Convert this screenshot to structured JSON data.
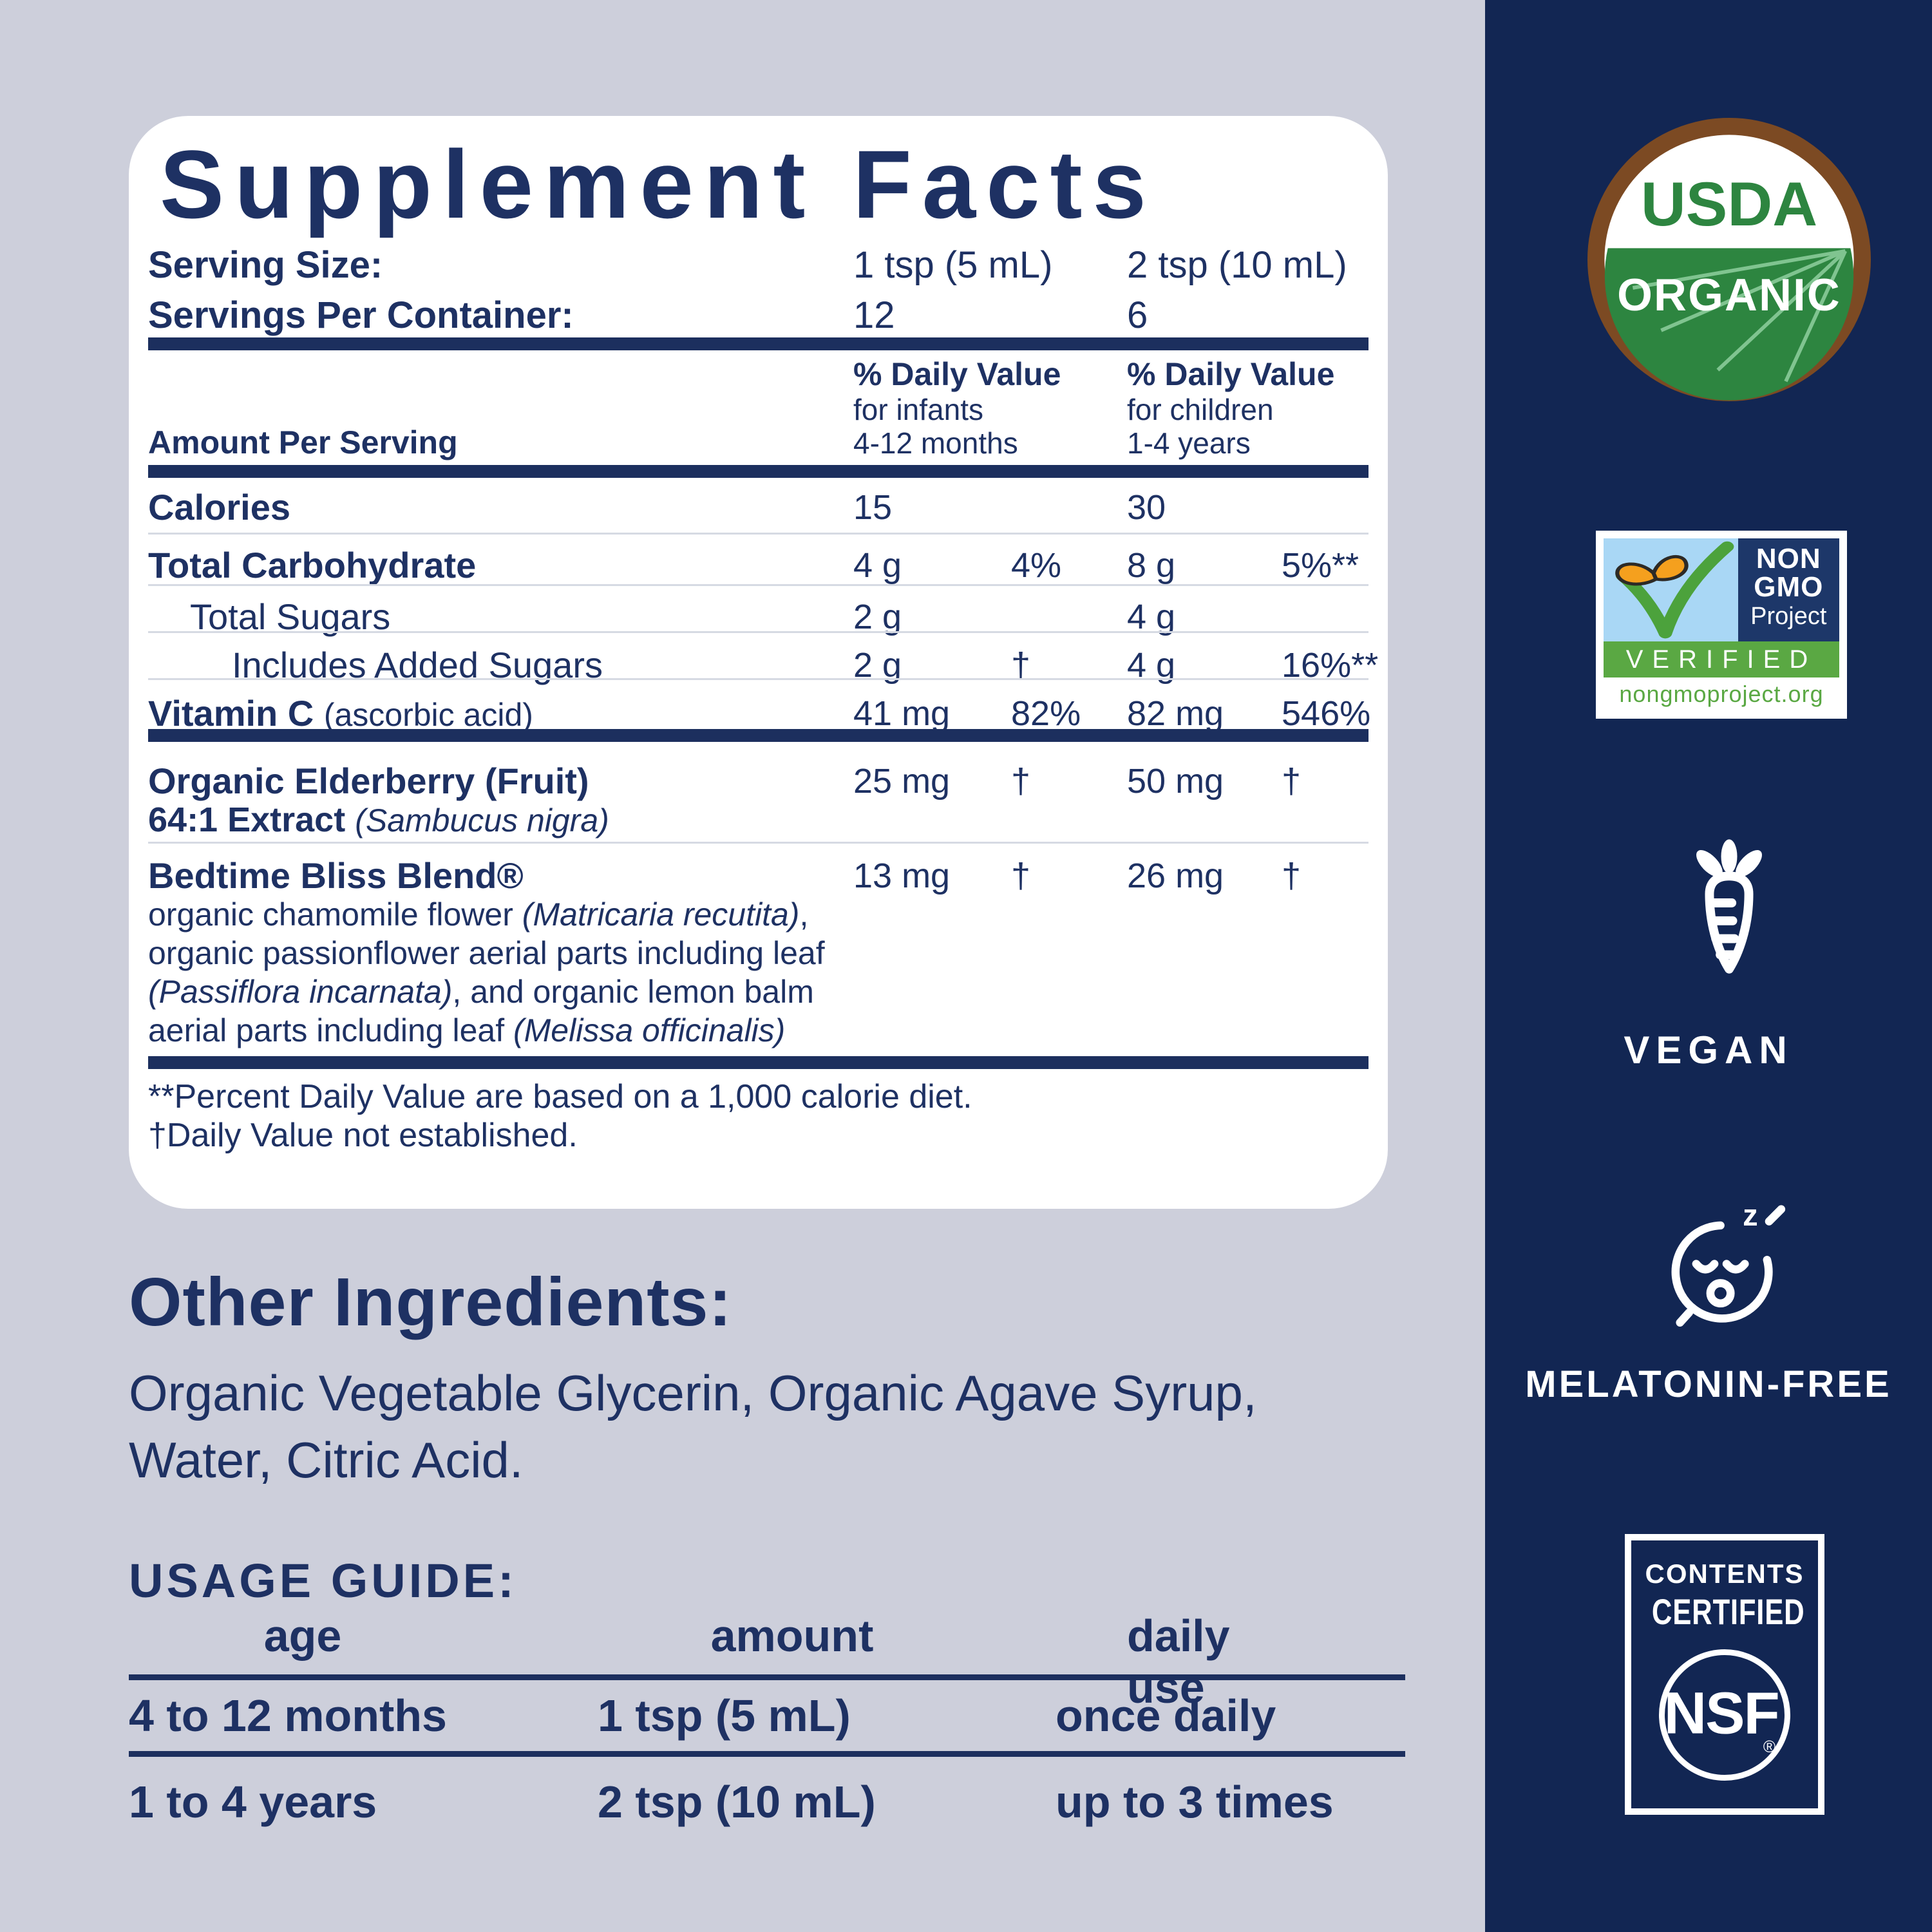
{
  "colors": {
    "background": "#cdcfdb",
    "band_navy": "#122653",
    "card_white": "#ffffff",
    "text_navy": "#1e3163",
    "divider_gray": "#d6dae3",
    "usda_green": "#2d8540",
    "usda_brown": "#7c4a23",
    "nongmo_navy": "#1d3769",
    "nongmo_green": "#5aa843",
    "nongmo_sky": "#a9d7f5",
    "butterfly_orange": "#f5a01e"
  },
  "supplement_facts": {
    "title": "Supplement Facts",
    "serving_size_label": "Serving Size:",
    "serving_size_col1": "1 tsp (5 mL)",
    "serving_size_col2": "2 tsp (10 mL)",
    "servings_label": "Servings Per Container:",
    "servings_col1": "12",
    "servings_col2": "6",
    "amount_per_serving": "Amount Per Serving",
    "dv_col1": {
      "l1": "% Daily Value",
      "l2": "for infants",
      "l3": "4-12 months"
    },
    "dv_col2": {
      "l1": "% Daily Value",
      "l2": "for children",
      "l3": "1-4 years"
    },
    "rows": [
      {
        "name": "Calories",
        "amt1": "15",
        "dv1": "",
        "amt2": "30",
        "dv2": ""
      },
      {
        "name": "Total Carbohydrate",
        "amt1": "4 g",
        "dv1": "4%",
        "amt2": "8 g",
        "dv2": "5%**"
      },
      {
        "name": "Total Sugars",
        "amt1": "2 g",
        "dv1": "",
        "amt2": "4 g",
        "dv2": ""
      },
      {
        "name": "Includes Added Sugars",
        "amt1": "2 g",
        "dv1": "†",
        "amt2": "4 g",
        "dv2": "16%**"
      },
      {
        "name": "Vitamin C",
        "note": "(ascorbic acid)",
        "amt1": "41 mg",
        "dv1": "82%",
        "amt2": "82 mg",
        "dv2": "546%"
      }
    ],
    "elderberry": {
      "line1": "Organic Elderberry (Fruit)",
      "line2_bold": "64:1 Extract ",
      "line2_italic": "(Sambucus nigra)",
      "amt1": "25 mg",
      "dv1": "†",
      "amt2": "50 mg",
      "dv2": "†"
    },
    "blend": {
      "name": "Bedtime Bliss Blend®",
      "amt1": "13 mg",
      "dv1": "†",
      "amt2": "26 mg",
      "dv2": "†",
      "desc_line1": [
        {
          "t": "organic chamomile flower "
        },
        {
          "t": "(Matricaria recutita)",
          "i": true
        },
        {
          "t": ","
        }
      ],
      "desc_line2": [
        {
          "t": "organic passionflower aerial parts including leaf"
        }
      ],
      "desc_line3": [
        {
          "t": "(Passiflora incarnata)",
          "i": true
        },
        {
          "t": ", and organic lemon balm"
        }
      ],
      "desc_line4": [
        {
          "t": "aerial parts including leaf "
        },
        {
          "t": "(Melissa officinalis)",
          "i": true
        }
      ]
    },
    "footnote1": "**Percent Daily Value are based on a 1,000 calorie diet.",
    "footnote2": "†Daily Value not established."
  },
  "other_ingredients": {
    "heading": "Other Ingredients:",
    "line1": "Organic Vegetable Glycerin, Organic Agave Syrup,",
    "line2": "Water, Citric Acid."
  },
  "usage_guide": {
    "heading": "USAGE GUIDE:",
    "col_age": "age",
    "col_amount": "amount",
    "col_daily": "daily use",
    "rows": [
      {
        "age": "4 to 12 months",
        "amount": "1 tsp (5 mL)",
        "daily": "once daily"
      },
      {
        "age": "1 to 4 years",
        "amount": "2 tsp (10 mL)",
        "daily": "up to 3 times"
      }
    ]
  },
  "badges": {
    "usda": {
      "line1": "USDA",
      "line2": "ORGANIC"
    },
    "non_gmo": {
      "word1": "NON",
      "word2": "GMO",
      "word3": "Project",
      "verified": "VERIFIED",
      "url": "nongmoproject.org"
    },
    "vegan": {
      "label": "VEGAN"
    },
    "melatonin": {
      "label": "MELATONIN-FREE"
    },
    "nsf": {
      "line1": "CONTENTS",
      "line2": "CERTIFIED",
      "logo": "NSF",
      "reg": "®"
    }
  }
}
